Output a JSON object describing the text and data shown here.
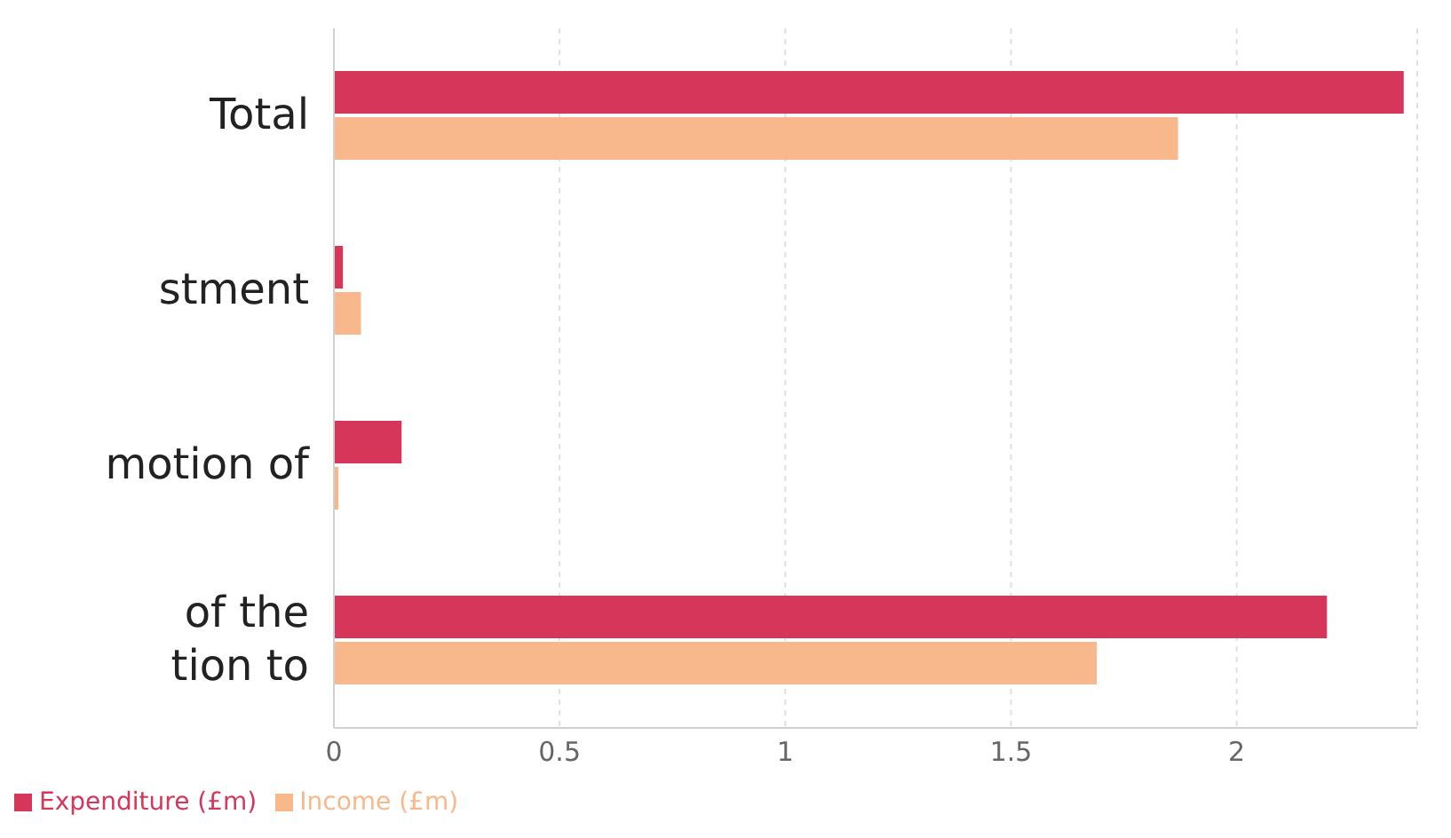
{
  "chart_data": {
    "type": "bar",
    "orientation": "horizontal",
    "categories": [
      "Total",
      "stment",
      "motion of",
      "of the\ntion to"
    ],
    "series": [
      {
        "name": "Expenditure (£m)",
        "color": "#d6365a",
        "values": [
          2.37,
          0.02,
          0.15,
          2.2
        ]
      },
      {
        "name": "Income (£m)",
        "color": "#f9b88c",
        "values": [
          1.87,
          0.06,
          0.01,
          1.69
        ]
      }
    ],
    "xlim": [
      0,
      2.4
    ],
    "xticks": [
      0,
      0.5,
      1,
      1.5,
      2
    ],
    "grid": "x",
    "legend": "bottom left"
  }
}
